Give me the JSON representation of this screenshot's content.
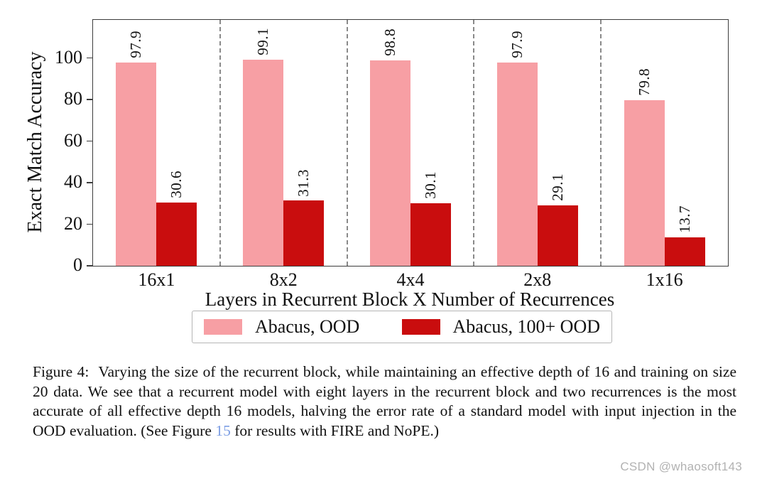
{
  "chart_data": {
    "type": "bar",
    "title": "",
    "categories": [
      "16x1",
      "8x2",
      "4x4",
      "2x8",
      "1x16"
    ],
    "series": [
      {
        "name": "Abacus, OOD",
        "color": "#f79fa4",
        "values": [
          97.9,
          99.1,
          98.8,
          97.9,
          79.8
        ]
      },
      {
        "name": "Abacus, 100+ OOD",
        "color": "#c90d0e",
        "values": [
          30.6,
          31.3,
          30.1,
          29.1,
          13.7
        ]
      }
    ],
    "xlabel": "Layers in Recurrent Block X Number of Recurrences",
    "ylabel": "Exact Match Accuracy",
    "ylim": [
      0,
      118.3
    ],
    "yticks": [
      0,
      20,
      40,
      60,
      80,
      100
    ],
    "grid": false,
    "group_separators": "dashed-vertical",
    "legend_position": "below-axis",
    "bar_value_labels": "rotated-90"
  },
  "caption": {
    "prefix": "Figure 4:",
    "before_link": "Varying the size of the recurrent block, while maintaining an effective depth of 16 and training on size 20 data. We see that a recurrent model with eight layers in the recurrent block and two recurrences is the most accurate of all effective depth 16 models, halving the error rate of a standard model with input injection in the OOD evaluation. (See Figure ",
    "link_text": "15",
    "after_link": " for results with FIRE and NoPE.)",
    "link_color": "#7d9ee4"
  },
  "watermark": "CSDN @whaosoft143"
}
